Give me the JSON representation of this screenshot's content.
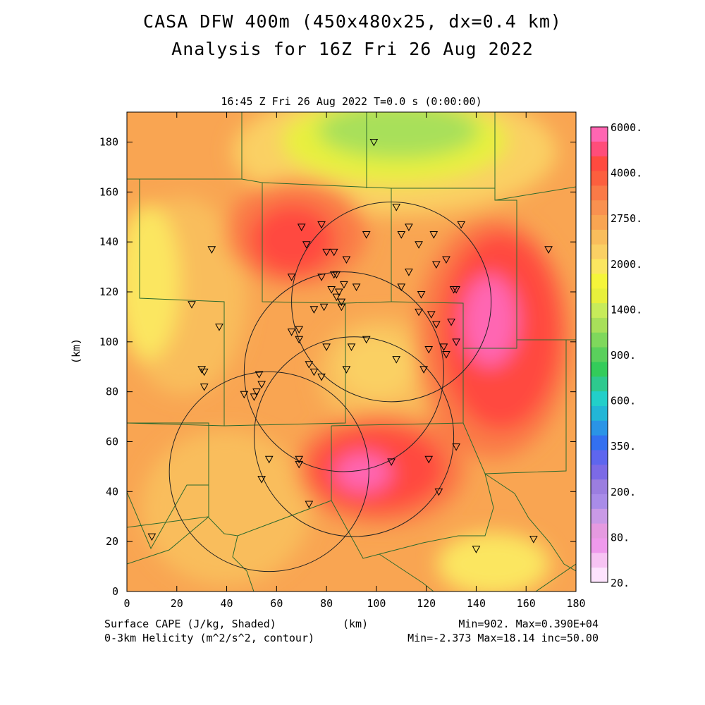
{
  "title_line1": "CASA DFW 400m (450x480x25, dx=0.4 km)",
  "title_line2": "Analysis for 16Z Fri 26 Aug 2022",
  "subtitle": "16:45 Z Fri 26 Aug 2022   T=0.0 s (0:00:00)",
  "map_data": {
    "type": "heatmap",
    "field": "Surface CAPE",
    "contour_field": "0-3km Helicity",
    "xlabel": "(km)",
    "ylabel": "(km)",
    "xlim": [
      0,
      180
    ],
    "ylim": [
      0,
      192
    ],
    "x_ticks": [
      "0",
      "20",
      "40",
      "60",
      "80",
      "100",
      "120",
      "140",
      "160",
      "180"
    ],
    "y_ticks": [
      "0",
      "20",
      "40",
      "60",
      "80",
      "100",
      "120",
      "140",
      "160",
      "180"
    ],
    "colorbar_labels": [
      "6000.",
      "4000.",
      "2750.",
      "2000.",
      "1400.",
      "900.",
      "600.",
      "350.",
      "200.",
      "80.",
      "20."
    ],
    "colorbar_colors": [
      "#ff66b2",
      "#ff4d7a",
      "#ff4a3f",
      "#fc5f3e",
      "#fa7a47",
      "#f99150",
      "#f9a552",
      "#f9bd5c",
      "#fad064",
      "#fbe660",
      "#f5f53a",
      "#e8f03c",
      "#c7ec5a",
      "#a8e05a",
      "#7fd85c",
      "#5ad05c",
      "#33cc5a",
      "#2ec98e",
      "#22cfc9",
      "#22b6d6",
      "#2a94e6",
      "#3370f0",
      "#5e66ee",
      "#7c6ae6",
      "#9b7ee0",
      "#a98ce8",
      "#c99ae6",
      "#e59ae0",
      "#ef9aec",
      "#f7c3f3",
      "#fde3fd"
    ],
    "range_ring_centers_km": [
      [
        106,
        116
      ],
      [
        87,
        88
      ],
      [
        91,
        62
      ],
      [
        57,
        48
      ]
    ],
    "range_ring_radius_km": 40,
    "stations_km": [
      [
        99,
        180
      ],
      [
        108,
        154
      ],
      [
        113,
        146
      ],
      [
        123,
        143
      ],
      [
        134,
        147
      ],
      [
        78,
        147
      ],
      [
        70,
        146
      ],
      [
        72,
        139
      ],
      [
        96,
        143
      ],
      [
        110,
        143
      ],
      [
        117,
        139
      ],
      [
        80,
        136
      ],
      [
        83,
        136
      ],
      [
        88,
        133
      ],
      [
        169,
        137
      ],
      [
        34,
        137
      ],
      [
        113,
        128
      ],
      [
        124,
        131
      ],
      [
        128,
        133
      ],
      [
        110,
        122
      ],
      [
        66,
        126
      ],
      [
        78,
        126
      ],
      [
        83,
        127
      ],
      [
        84,
        127
      ],
      [
        85,
        120
      ],
      [
        87,
        123
      ],
      [
        82,
        121
      ],
      [
        92,
        122
      ],
      [
        118,
        119
      ],
      [
        132,
        121
      ],
      [
        131,
        121
      ],
      [
        84,
        118
      ],
      [
        86,
        116
      ],
      [
        79,
        114
      ],
      [
        86,
        114
      ],
      [
        75,
        113
      ],
      [
        26,
        115
      ],
      [
        122,
        111
      ],
      [
        117,
        112
      ],
      [
        124,
        107
      ],
      [
        130,
        108
      ],
      [
        37,
        106
      ],
      [
        66,
        104
      ],
      [
        69,
        105
      ],
      [
        69,
        101
      ],
      [
        96,
        101
      ],
      [
        132,
        100
      ],
      [
        80,
        98
      ],
      [
        90,
        98
      ],
      [
        127,
        98
      ],
      [
        121,
        97
      ],
      [
        128,
        95
      ],
      [
        30,
        89
      ],
      [
        31,
        88
      ],
      [
        53,
        87
      ],
      [
        108,
        93
      ],
      [
        88,
        89
      ],
      [
        73,
        91
      ],
      [
        75,
        88
      ],
      [
        119,
        89
      ],
      [
        78,
        86
      ],
      [
        54,
        83
      ],
      [
        31,
        82
      ],
      [
        47,
        79
      ],
      [
        51,
        78
      ],
      [
        52,
        80
      ],
      [
        132,
        58
      ],
      [
        106,
        52
      ],
      [
        121,
        53
      ],
      [
        57,
        53
      ],
      [
        69,
        53
      ],
      [
        69,
        51
      ],
      [
        54,
        45
      ],
      [
        125,
        40
      ],
      [
        73,
        35
      ],
      [
        10,
        22
      ],
      [
        140,
        17
      ],
      [
        163,
        21
      ]
    ],
    "stats": {
      "min": "Min=902.",
      "max": "Max=0.390E+04",
      "hel_min": "Min=-2.373",
      "hel_max": "Max=18.14",
      "inc": "inc=50.00"
    }
  },
  "footer": {
    "left1": "Surface CAPE (J/kg, Shaded)",
    "left2": "0-3km Helicity (m^2/s^2, contour)",
    "center": "(km)",
    "right1": "Min=902. Max=0.390E+04",
    "right2": "Min=-2.373 Max=18.14 inc=50.00"
  }
}
